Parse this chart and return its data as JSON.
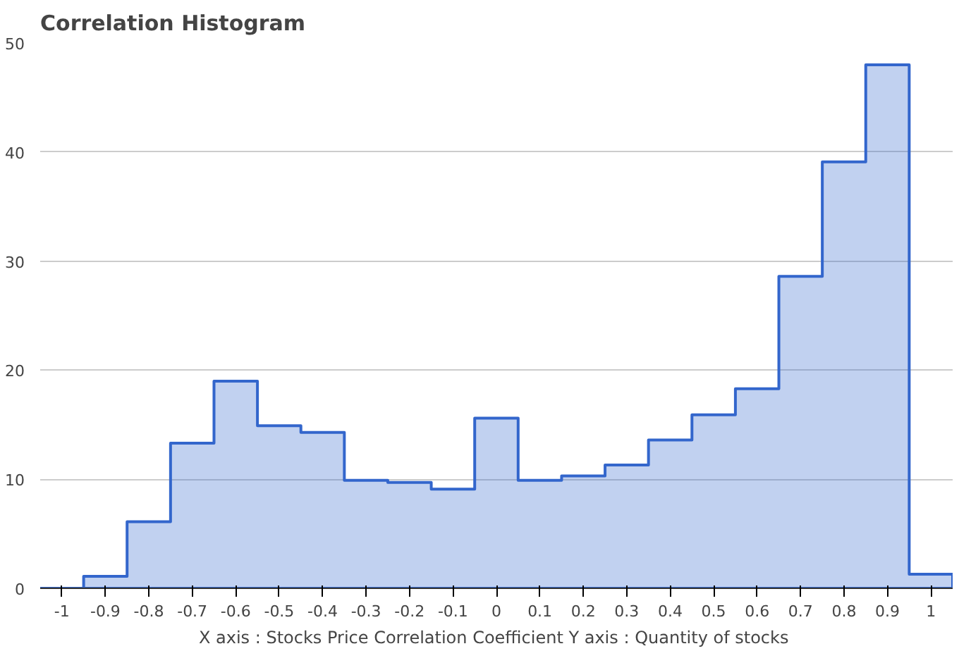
{
  "chart_data": {
    "type": "histogram",
    "title": "Correlation Histogram",
    "xlabel": "X axis : Stocks Price Correlation Coefficient  Y axis : Quantity of stocks",
    "bins": [
      -1.05,
      -0.95,
      -0.85,
      -0.75,
      -0.65,
      -0.55,
      -0.45,
      -0.35,
      -0.25,
      -0.15,
      -0.05,
      0.05,
      0.15,
      0.25,
      0.35,
      0.45,
      0.55,
      0.65,
      0.75,
      0.85,
      0.95,
      1.05
    ],
    "values": [
      0,
      1.1,
      6.1,
      13.3,
      19,
      14.9,
      14.3,
      9.9,
      9.7,
      9.1,
      15.6,
      9.9,
      10.3,
      11.3,
      13.6,
      15.9,
      18.3,
      28.6,
      39.1,
      48,
      1.3
    ],
    "color": "#3366cc",
    "xlim": [
      -1.05,
      1.05
    ],
    "xticks": [
      -1,
      -0.9,
      -0.8,
      -0.7,
      -0.6,
      -0.5,
      -0.4,
      -0.3,
      -0.2,
      -0.1,
      0,
      0.1,
      0.2,
      0.3,
      0.4,
      0.5,
      0.6,
      0.7,
      0.8,
      0.9,
      1
    ],
    "ylim": [
      0,
      50
    ],
    "yticks": [
      0,
      10,
      20,
      30,
      40,
      50
    ],
    "grid": "y"
  }
}
